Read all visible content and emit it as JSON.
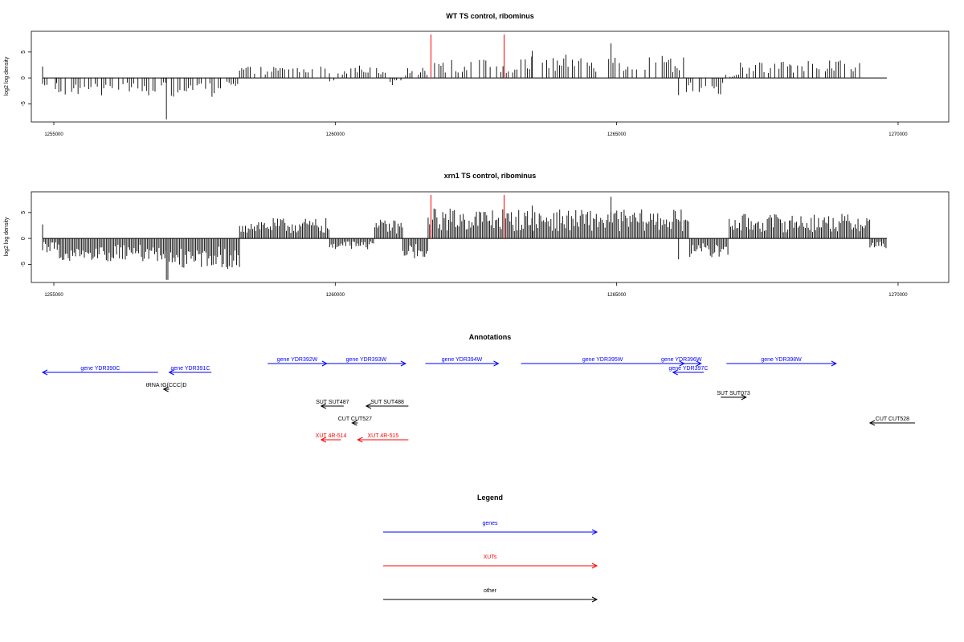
{
  "chart_data": [
    {
      "type": "bar",
      "title": "WT TS control, ribominus",
      "xlabel": "",
      "ylabel": "log2 log density",
      "xlim": [
        1254600,
        1270900
      ],
      "ylim": [
        -8.5,
        9
      ],
      "x_ticks": [
        1255000,
        1260000,
        1265000,
        1270000
      ],
      "y_ticks": [
        -5,
        0,
        5
      ],
      "grid": false,
      "marker_lines_x": [
        1261700,
        1263000
      ],
      "segments": [
        {
          "from": 1254800,
          "to": 1255050,
          "level": -2.0
        },
        {
          "from": 1255050,
          "to": 1257000,
          "level": -2.4
        },
        {
          "from": 1257000,
          "to": 1257050,
          "level": -8.0
        },
        {
          "from": 1257050,
          "to": 1258000,
          "level": -2.6
        },
        {
          "from": 1258000,
          "to": 1258300,
          "level": -1.5
        },
        {
          "from": 1258300,
          "to": 1259900,
          "level": 1.6
        },
        {
          "from": 1259900,
          "to": 1260050,
          "level": -0.8
        },
        {
          "from": 1260050,
          "to": 1260900,
          "level": 1.8
        },
        {
          "from": 1260900,
          "to": 1261250,
          "level": -1.0
        },
        {
          "from": 1261250,
          "to": 1261650,
          "level": 1.4
        },
        {
          "from": 1261650,
          "to": 1263000,
          "level": 2.6
        },
        {
          "from": 1263000,
          "to": 1263300,
          "level": 1.2
        },
        {
          "from": 1263300,
          "to": 1266200,
          "level": 3.2
        },
        {
          "from": 1266200,
          "to": 1266900,
          "level": -2.4
        },
        {
          "from": 1266900,
          "to": 1267200,
          "level": 0.5
        },
        {
          "from": 1267200,
          "to": 1268100,
          "level": 2.3
        },
        {
          "from": 1268100,
          "to": 1269500,
          "level": 2.6
        }
      ]
    },
    {
      "type": "bar",
      "title": "xrn1 TS control, ribominus",
      "xlabel": "",
      "ylabel": "log2 log density",
      "xlim": [
        1254600,
        1270900
      ],
      "ylim": [
        -8.5,
        9
      ],
      "x_ticks": [
        1255000,
        1260000,
        1265000,
        1270000
      ],
      "y_ticks": [
        -5,
        0,
        5
      ],
      "grid": false,
      "marker_lines_x": [
        1261700,
        1263000
      ],
      "segments": [
        {
          "from": 1254800,
          "to": 1255100,
          "level": -2.0
        },
        {
          "from": 1255100,
          "to": 1257000,
          "level": -3.2
        },
        {
          "from": 1257000,
          "to": 1257050,
          "level": -8.0
        },
        {
          "from": 1257050,
          "to": 1258300,
          "level": -4.2
        },
        {
          "from": 1258300,
          "to": 1259900,
          "level": 2.8
        },
        {
          "from": 1259900,
          "to": 1260700,
          "level": -1.5
        },
        {
          "from": 1260700,
          "to": 1261200,
          "level": 2.6
        },
        {
          "from": 1261200,
          "to": 1261650,
          "level": -2.8
        },
        {
          "from": 1261650,
          "to": 1263000,
          "level": 4.2
        },
        {
          "from": 1263000,
          "to": 1266300,
          "level": 4.0
        },
        {
          "from": 1266300,
          "to": 1267000,
          "level": -2.6
        },
        {
          "from": 1267000,
          "to": 1269500,
          "level": 3.4
        },
        {
          "from": 1269500,
          "to": 1269800,
          "level": -1.5
        }
      ]
    }
  ],
  "annotations": {
    "title": "Annotations",
    "items": [
      {
        "label": "gene YDR390C",
        "start": 1256850,
        "end": 1254800,
        "strand": "-",
        "color": "#0000ff"
      },
      {
        "label": "gene YDR391C",
        "start": 1257800,
        "end": 1257050,
        "strand": "-",
        "color": "#0000ff"
      },
      {
        "label": "gene YDR392W",
        "start": 1258800,
        "end": 1259850,
        "strand": "+",
        "color": "#0000ff"
      },
      {
        "label": "gene YDR393W",
        "start": 1259850,
        "end": 1261250,
        "strand": "+",
        "color": "#0000ff"
      },
      {
        "label": "gene YDR394W",
        "start": 1261600,
        "end": 1262900,
        "strand": "+",
        "color": "#0000ff"
      },
      {
        "label": "gene YDR395W",
        "start": 1263300,
        "end": 1266200,
        "strand": "+",
        "color": "#0000ff"
      },
      {
        "label": "gene YDR396W",
        "start": 1265800,
        "end": 1266500,
        "strand": "+",
        "color": "#0000ff"
      },
      {
        "label": "gene YDR397C",
        "start": 1266550,
        "end": 1266000,
        "strand": "-",
        "color": "#0000ff"
      },
      {
        "label": "gene YDR398W",
        "start": 1266950,
        "end": 1268900,
        "strand": "+",
        "color": "#0000ff"
      },
      {
        "label": "tRNA tG(CCC)D",
        "start": 1257050,
        "end": 1256950,
        "strand": "-",
        "color": "#000000"
      },
      {
        "label": "SUT SUT487",
        "start": 1260150,
        "end": 1259750,
        "strand": "-",
        "color": "#000000"
      },
      {
        "label": "SUT SUT488",
        "start": 1261300,
        "end": 1260550,
        "strand": "-",
        "color": "#000000"
      },
      {
        "label": "SUT SUT073",
        "start": 1266850,
        "end": 1267300,
        "strand": "+",
        "color": "#000000"
      },
      {
        "label": "CUT CUT527",
        "start": 1260400,
        "end": 1260300,
        "strand": "-",
        "color": "#000000"
      },
      {
        "label": "CUT CUT528",
        "start": 1270300,
        "end": 1269500,
        "strand": "-",
        "color": "#000000"
      },
      {
        "label": "XUT 4R-514",
        "start": 1260100,
        "end": 1259750,
        "strand": "-",
        "color": "#ff0000"
      },
      {
        "label": "XUT 4R-515",
        "start": 1261300,
        "end": 1260400,
        "strand": "-",
        "color": "#ff0000"
      }
    ]
  },
  "legend": {
    "title": "Legend",
    "entries": [
      {
        "label": "genes",
        "color": "#0000ff"
      },
      {
        "label": "XUTs",
        "color": "#ff0000"
      },
      {
        "label": "other",
        "color": "#000000"
      }
    ]
  }
}
